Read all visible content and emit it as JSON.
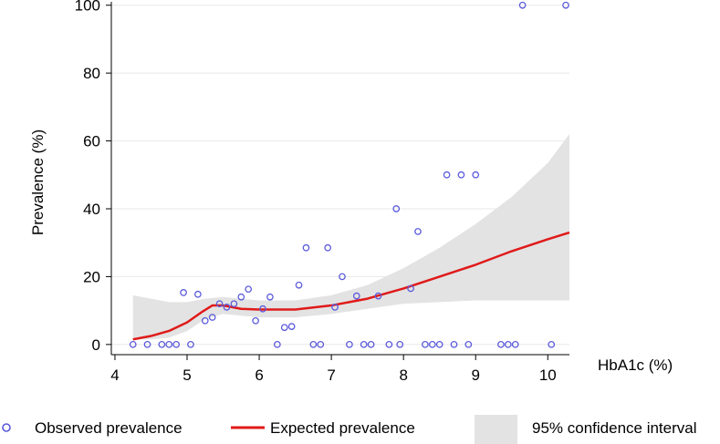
{
  "chart_data": {
    "type": "scatter",
    "title": "",
    "xlabel": "HbA1c (%)",
    "ylabel": "Prevalence (%)",
    "xlim": [
      3.95,
      10.3
    ],
    "ylim": [
      -3,
      101
    ],
    "x_ticks": [
      4,
      5,
      6,
      7,
      8,
      9,
      10
    ],
    "y_ticks": [
      0,
      20,
      40,
      60,
      80,
      100
    ],
    "grid": "horizontal",
    "legend_position": "bottom",
    "colors": {
      "observed": "#5a5adc",
      "expected": "#e01a1a",
      "ci": "#e3e3e3",
      "grid": "#e8e8e8",
      "axis": "#000000"
    },
    "series": [
      {
        "name": "Observed prevalence",
        "kind": "scatter",
        "points": [
          [
            4.25,
            0
          ],
          [
            4.45,
            0
          ],
          [
            4.65,
            0
          ],
          [
            4.75,
            0
          ],
          [
            4.85,
            0
          ],
          [
            4.95,
            15.3
          ],
          [
            5.05,
            0
          ],
          [
            5.15,
            14.8
          ],
          [
            5.25,
            7
          ],
          [
            5.35,
            8
          ],
          [
            5.45,
            12
          ],
          [
            5.55,
            11
          ],
          [
            5.65,
            12
          ],
          [
            5.75,
            14
          ],
          [
            5.85,
            16.3
          ],
          [
            5.95,
            7
          ],
          [
            6.05,
            10.5
          ],
          [
            6.15,
            14
          ],
          [
            6.25,
            0
          ],
          [
            6.35,
            5
          ],
          [
            6.45,
            5.3
          ],
          [
            6.55,
            17.5
          ],
          [
            6.65,
            28.5
          ],
          [
            6.75,
            0
          ],
          [
            6.85,
            0
          ],
          [
            6.95,
            28.5
          ],
          [
            7.05,
            11
          ],
          [
            7.15,
            20
          ],
          [
            7.25,
            0
          ],
          [
            7.35,
            14.3
          ],
          [
            7.45,
            0
          ],
          [
            7.55,
            0
          ],
          [
            7.65,
            14.3
          ],
          [
            7.8,
            0
          ],
          [
            7.9,
            40
          ],
          [
            7.95,
            0
          ],
          [
            8.1,
            16.5
          ],
          [
            8.2,
            33.3
          ],
          [
            8.3,
            0
          ],
          [
            8.4,
            0
          ],
          [
            8.5,
            0
          ],
          [
            8.6,
            50
          ],
          [
            8.7,
            0
          ],
          [
            8.8,
            50
          ],
          [
            8.9,
            0
          ],
          [
            9.0,
            50
          ],
          [
            9.35,
            0
          ],
          [
            9.45,
            0
          ],
          [
            9.55,
            0
          ],
          [
            9.65,
            100
          ],
          [
            10.05,
            0
          ],
          [
            10.25,
            100
          ]
        ]
      },
      {
        "name": "Expected prevalence",
        "kind": "line",
        "points": [
          [
            4.25,
            1.5
          ],
          [
            4.5,
            2.5
          ],
          [
            4.75,
            4
          ],
          [
            5.0,
            6.5
          ],
          [
            5.2,
            9.5
          ],
          [
            5.35,
            11.5
          ],
          [
            5.5,
            11.5
          ],
          [
            5.75,
            10.5
          ],
          [
            6.0,
            10.3
          ],
          [
            6.5,
            10.3
          ],
          [
            7.0,
            11.5
          ],
          [
            7.5,
            13.5
          ],
          [
            8.0,
            16.5
          ],
          [
            8.5,
            20
          ],
          [
            9.0,
            23.5
          ],
          [
            9.5,
            27.5
          ],
          [
            10.0,
            31
          ],
          [
            10.3,
            33
          ]
        ]
      },
      {
        "name": "95% confidence interval",
        "kind": "band",
        "upper": [
          [
            4.25,
            14.5
          ],
          [
            4.5,
            13.5
          ],
          [
            4.75,
            12.5
          ],
          [
            5.0,
            12.5
          ],
          [
            5.25,
            13.5
          ],
          [
            5.5,
            14
          ],
          [
            5.75,
            13.5
          ],
          [
            6.0,
            13
          ],
          [
            6.5,
            13
          ],
          [
            7.0,
            14.5
          ],
          [
            7.5,
            17.5
          ],
          [
            8.0,
            22.5
          ],
          [
            8.5,
            28.5
          ],
          [
            9.0,
            35.5
          ],
          [
            9.5,
            43.5
          ],
          [
            10.0,
            53.5
          ],
          [
            10.3,
            62
          ]
        ],
        "lower": [
          [
            4.25,
            1.5
          ],
          [
            4.5,
            1.5
          ],
          [
            4.75,
            2
          ],
          [
            5.0,
            4
          ],
          [
            5.25,
            7.5
          ],
          [
            5.5,
            9
          ],
          [
            5.75,
            8.5
          ],
          [
            6.0,
            8
          ],
          [
            6.5,
            8
          ],
          [
            7.0,
            9
          ],
          [
            7.5,
            10.5
          ],
          [
            8.0,
            12
          ],
          [
            8.5,
            12.5
          ],
          [
            9.0,
            13
          ],
          [
            9.5,
            13
          ],
          [
            10.0,
            13
          ],
          [
            10.3,
            13
          ]
        ]
      }
    ]
  }
}
